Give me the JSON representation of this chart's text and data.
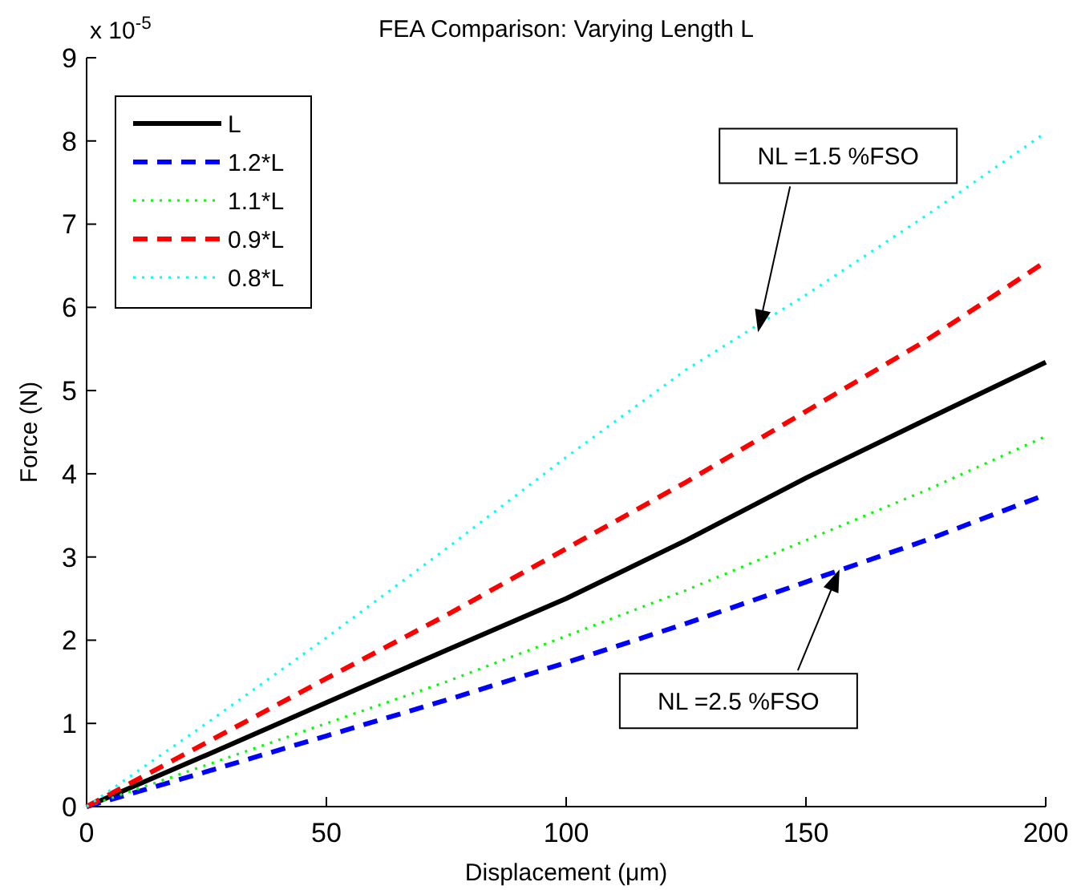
{
  "chart_data": {
    "type": "line",
    "title": "FEA Comparison: Varying Length L",
    "xlabel": "Displacement (μm)",
    "ylabel": "Force (N)",
    "x": [
      0,
      25,
      50,
      75,
      100,
      125,
      150,
      175,
      200
    ],
    "series": [
      {
        "name": "L",
        "color": "#000000",
        "line_style": "solid",
        "values": [
          0,
          0.62,
          1.25,
          1.88,
          2.5,
          3.2,
          3.95,
          4.65,
          5.34
        ]
      },
      {
        "name": "1.2*L",
        "color": "#0000ff",
        "line_style": "dashed",
        "values": [
          0,
          0.42,
          0.85,
          1.28,
          1.73,
          2.2,
          2.7,
          3.2,
          3.75
        ]
      },
      {
        "name": "1.1*L",
        "color": "#00ff00",
        "line_style": "dotted",
        "values": [
          0,
          0.5,
          1.0,
          1.5,
          2.05,
          2.6,
          3.2,
          3.8,
          4.45
        ]
      },
      {
        "name": "0.9*L",
        "color": "#ff0000",
        "line_style": "dashed",
        "values": [
          0,
          0.77,
          1.54,
          2.3,
          3.1,
          3.9,
          4.75,
          5.6,
          6.55
        ]
      },
      {
        "name": "0.8*L",
        "color": "#00ffff",
        "line_style": "dotted",
        "values": [
          0,
          1.0,
          2.03,
          3.1,
          4.2,
          5.25,
          6.15,
          7.1,
          8.1
        ]
      }
    ],
    "xlim": [
      0,
      200
    ],
    "xticks": [
      0,
      50,
      100,
      150,
      200
    ],
    "ylim": [
      0,
      9
    ],
    "yticks": [
      0,
      1,
      2,
      3,
      4,
      5,
      6,
      7,
      8,
      9
    ],
    "grid": false,
    "legend": "top left",
    "annotations": [
      "x 10$^{-5}$",
      {
        "text": "NL =1.5 %FSO",
        "x": 140,
        "y": 5.7
      },
      {
        "text": "NL =2.5 %FSO",
        "x": 157,
        "y": 2.85
      }
    ]
  }
}
